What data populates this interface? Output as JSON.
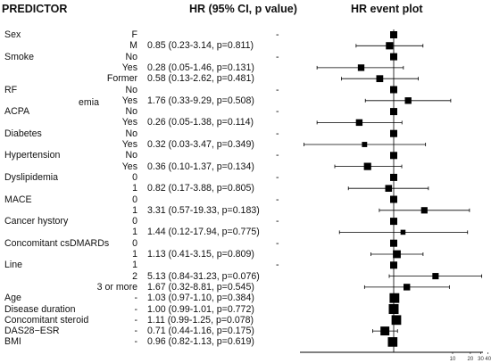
{
  "header": {
    "predictor": "PREDICTOR",
    "hr": "HR (95% CI, p value)",
    "plot": "HR event plot"
  },
  "stray_text": "emia",
  "chart_data": {
    "type": "forest",
    "x_scale": "log",
    "x_reference": 1,
    "x_ticks": [
      10,
      20,
      30,
      40
    ],
    "xlim": [
      0.02,
      40
    ],
    "rows": [
      {
        "variable": "Sex",
        "level": "F",
        "hr_text": "",
        "dash": "-",
        "ref": true
      },
      {
        "variable": "",
        "level": "M",
        "hr_text": "0.85 (0.23-3.14, p=0.811)",
        "hr": 0.85,
        "lo": 0.23,
        "hi": 3.14
      },
      {
        "variable": "Smoke",
        "level": "No",
        "hr_text": "",
        "dash": "-",
        "ref": true
      },
      {
        "variable": "",
        "level": "Yes",
        "hr_text": "0.28 (0.05-1.46, p=0.131)",
        "hr": 0.28,
        "lo": 0.05,
        "hi": 1.46
      },
      {
        "variable": "",
        "level": "Former",
        "hr_text": "0.58 (0.13-2.62, p=0.481)",
        "hr": 0.58,
        "lo": 0.13,
        "hi": 2.62
      },
      {
        "variable": "RF",
        "level": "No",
        "hr_text": "",
        "dash": "-",
        "ref": true
      },
      {
        "variable": "",
        "level": "Yes",
        "hr_text": "1.76 (0.33-9.29, p=0.508)",
        "hr": 1.76,
        "lo": 0.33,
        "hi": 9.29
      },
      {
        "variable": "ACPA",
        "level": "No",
        "hr_text": "",
        "dash": "-",
        "ref": true
      },
      {
        "variable": "",
        "level": "Yes",
        "hr_text": "0.26 (0.05-1.38, p=0.114)",
        "hr": 0.26,
        "lo": 0.05,
        "hi": 1.38
      },
      {
        "variable": "Diabetes",
        "level": "No",
        "hr_text": "",
        "dash": "-",
        "ref": true
      },
      {
        "variable": "",
        "level": "Yes",
        "hr_text": "0.32 (0.03-3.47, p=0.349)",
        "hr": 0.32,
        "lo": 0.03,
        "hi": 3.47
      },
      {
        "variable": "Hypertension",
        "level": "No",
        "hr_text": "",
        "dash": "-",
        "ref": true
      },
      {
        "variable": "",
        "level": "Yes",
        "hr_text": "0.36 (0.10-1.37, p=0.134)",
        "hr": 0.36,
        "lo": 0.1,
        "hi": 1.37
      },
      {
        "variable": "Dyslipidemia",
        "level": "0",
        "hr_text": "",
        "dash": "-",
        "ref": true
      },
      {
        "variable": "",
        "level": "1",
        "hr_text": "0.82 (0.17-3.88, p=0.805)",
        "hr": 0.82,
        "lo": 0.17,
        "hi": 3.88
      },
      {
        "variable": "MACE",
        "level": "0",
        "hr_text": "",
        "dash": "-",
        "ref": true
      },
      {
        "variable": "",
        "level": "1",
        "hr_text": "3.31 (0.57-19.33, p=0.183)",
        "hr": 3.31,
        "lo": 0.57,
        "hi": 19.33
      },
      {
        "variable": "Cancer hystory",
        "level": "0",
        "hr_text": "",
        "dash": "-",
        "ref": true
      },
      {
        "variable": "",
        "level": "1",
        "hr_text": "1.44 (0.12-17.94, p=0.775)",
        "hr": 1.44,
        "lo": 0.12,
        "hi": 17.94
      },
      {
        "variable": "Concomitant csDMARDs",
        "level": "0",
        "hr_text": "",
        "dash": "-",
        "ref": true
      },
      {
        "variable": "",
        "level": "1",
        "hr_text": "1.13 (0.41-3.15, p=0.809)",
        "hr": 1.13,
        "lo": 0.41,
        "hi": 3.15
      },
      {
        "variable": "Line",
        "level": "1",
        "hr_text": "",
        "dash": "-",
        "ref": true
      },
      {
        "variable": "",
        "level": "2",
        "hr_text": "5.13 (0.84-31.23, p=0.076)",
        "hr": 5.13,
        "lo": 0.84,
        "hi": 31.23
      },
      {
        "variable": "",
        "level": "3 or more",
        "hr_text": "1.67 (0.32-8.81, p=0.545)",
        "hr": 1.67,
        "lo": 0.32,
        "hi": 8.81
      },
      {
        "variable": "Age",
        "level": "-",
        "hr_text": "1.03 (0.97-1.10, p=0.384)",
        "hr": 1.03,
        "lo": 0.97,
        "hi": 1.1
      },
      {
        "variable": "Disease duration",
        "level": "-",
        "hr_text": "1.00 (0.99-1.01, p=0.772)",
        "hr": 1.0,
        "lo": 0.99,
        "hi": 1.01
      },
      {
        "variable": "Concomitant steroid",
        "level": "-",
        "hr_text": "1.11 (0.99-1.25, p=0.078)",
        "hr": 1.11,
        "lo": 0.99,
        "hi": 1.25
      },
      {
        "variable": "DAS28−ESR",
        "level": "-",
        "hr_text": "0.71 (0.44-1.16, p=0.175)",
        "hr": 0.71,
        "lo": 0.44,
        "hi": 1.16
      },
      {
        "variable": "BMI",
        "level": "-",
        "hr_text": "0.96 (0.82-1.13, p=0.619)",
        "hr": 0.96,
        "lo": 0.82,
        "hi": 1.13
      }
    ]
  }
}
